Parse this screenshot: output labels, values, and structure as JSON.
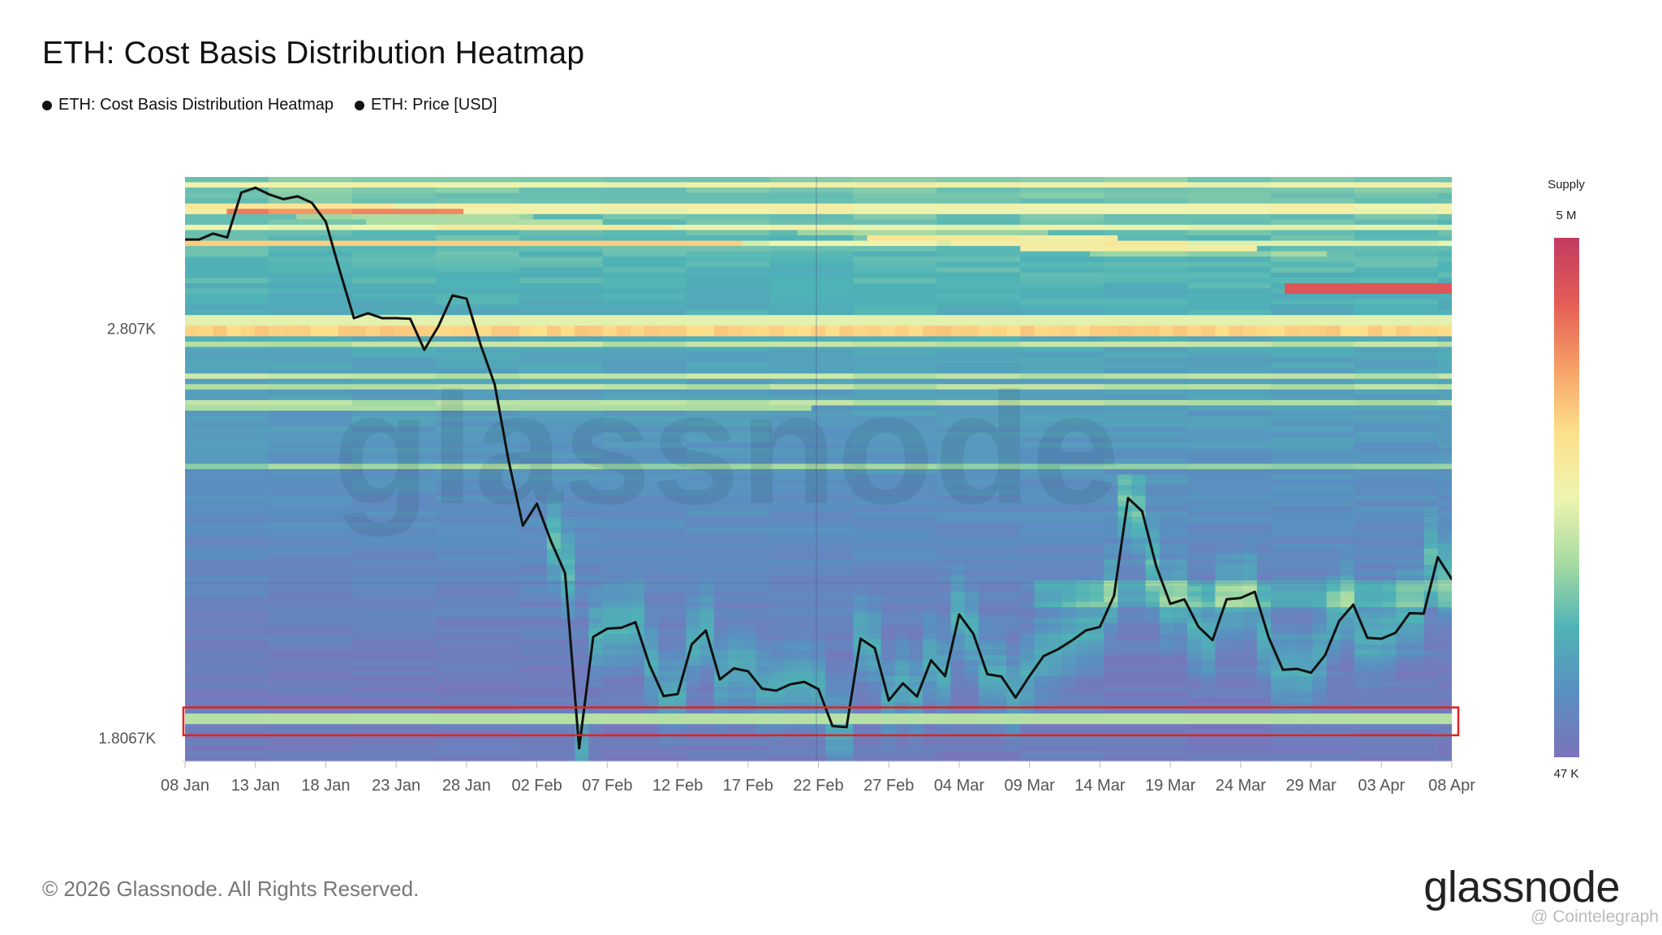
{
  "chart_data": {
    "type": "heatmap",
    "title": "ETH: Cost Basis Distribution Heatmap",
    "legend": [
      "ETH: Cost Basis Distribution Heatmap",
      "ETH: Price [USD]"
    ],
    "y_tick_labels": [
      "2.807K",
      "1.8067K"
    ],
    "ylim": [
      1760,
      3300
    ],
    "y_scale": "log",
    "x_tick_labels": [
      "08 Jan",
      "13 Jan",
      "18 Jan",
      "23 Jan",
      "28 Jan",
      "02 Feb",
      "07 Feb",
      "12 Feb",
      "17 Feb",
      "22 Feb",
      "27 Feb",
      "04 Mar",
      "09 Mar",
      "14 Mar",
      "19 Mar",
      "24 Mar",
      "29 Mar",
      "03 Apr",
      "08 Apr"
    ],
    "x_range": [
      "2026-01-08",
      "2026-04-08"
    ],
    "colorbar": {
      "title": "Supply",
      "max_label": "5 M",
      "min_label": "47 K",
      "colors": [
        "#7b73bb",
        "#5a8fc0",
        "#4fb3b6",
        "#a8dba2",
        "#eef4b0",
        "#fde08b",
        "#f6a067",
        "#e45c55",
        "#c23c62"
      ]
    },
    "heatmap_bands": [
      {
        "price": 2807,
        "supply": "high",
        "start": "2026-01-08",
        "end": "2026-04-08"
      },
      {
        "price": 1840,
        "supply": "medium",
        "start": "2026-01-08",
        "end": "2026-04-08"
      }
    ],
    "highlight_box": {
      "price_low": 1810,
      "price_high": 1865,
      "color": "#e0231b"
    },
    "price_series": {
      "name": "ETH: Price [USD]",
      "points": [
        [
          "2026-01-08",
          3085
        ],
        [
          "2026-01-09",
          3085
        ],
        [
          "2026-01-10",
          3105
        ],
        [
          "2026-01-11",
          3092
        ],
        [
          "2026-01-12",
          3245
        ],
        [
          "2026-01-13",
          3262
        ],
        [
          "2026-01-14",
          3238
        ],
        [
          "2026-01-15",
          3222
        ],
        [
          "2026-01-16",
          3232
        ],
        [
          "2026-01-17",
          3210
        ],
        [
          "2026-01-18",
          3145
        ],
        [
          "2026-01-19",
          2982
        ],
        [
          "2026-01-20",
          2835
        ],
        [
          "2026-01-21",
          2850
        ],
        [
          "2026-01-22",
          2835
        ],
        [
          "2026-01-23",
          2835
        ],
        [
          "2026-01-24",
          2833
        ],
        [
          "2026-01-25",
          2740
        ],
        [
          "2026-01-26",
          2810
        ],
        [
          "2026-01-27",
          2905
        ],
        [
          "2026-01-28",
          2895
        ],
        [
          "2026-01-29",
          2755
        ],
        [
          "2026-01-30",
          2640
        ],
        [
          "2026-01-31",
          2430
        ],
        [
          "2026-02-01",
          2268
        ],
        [
          "2026-02-02",
          2322
        ],
        [
          "2026-02-03",
          2230
        ],
        [
          "2026-02-04",
          2155
        ],
        [
          "2026-02-05",
          1785
        ],
        [
          "2026-02-06",
          2012
        ],
        [
          "2026-02-07",
          2030
        ],
        [
          "2026-02-08",
          2032
        ],
        [
          "2026-02-09",
          2044
        ],
        [
          "2026-02-10",
          1952
        ],
        [
          "2026-02-11",
          1888
        ],
        [
          "2026-02-12",
          1892
        ],
        [
          "2026-02-13",
          1996
        ],
        [
          "2026-02-14",
          2026
        ],
        [
          "2026-02-15",
          1922
        ],
        [
          "2026-02-16",
          1945
        ],
        [
          "2026-02-17",
          1939
        ],
        [
          "2026-02-18",
          1903
        ],
        [
          "2026-02-19",
          1899
        ],
        [
          "2026-02-20",
          1912
        ],
        [
          "2026-02-21",
          1917
        ],
        [
          "2026-02-22",
          1902
        ],
        [
          "2026-02-23",
          1828
        ],
        [
          "2026-02-24",
          1826
        ],
        [
          "2026-02-25",
          2008
        ],
        [
          "2026-02-26",
          1988
        ],
        [
          "2026-02-27",
          1879
        ],
        [
          "2026-02-28",
          1914
        ],
        [
          "2026-03-01",
          1887
        ],
        [
          "2026-03-02",
          1962
        ],
        [
          "2026-03-03",
          1929
        ],
        [
          "2026-03-04",
          2061
        ],
        [
          "2026-03-05",
          2019
        ],
        [
          "2026-03-06",
          1933
        ],
        [
          "2026-03-07",
          1928
        ],
        [
          "2026-03-08",
          1885
        ],
        [
          "2026-03-09",
          1929
        ],
        [
          "2026-03-10",
          1971
        ],
        [
          "2026-03-11",
          1985
        ],
        [
          "2026-03-12",
          2004
        ],
        [
          "2026-03-13",
          2026
        ],
        [
          "2026-03-14",
          2034
        ],
        [
          "2026-03-15",
          2103
        ],
        [
          "2026-03-16",
          2336
        ],
        [
          "2026-03-17",
          2303
        ],
        [
          "2026-03-18",
          2171
        ],
        [
          "2026-03-19",
          2085
        ],
        [
          "2026-03-20",
          2095
        ],
        [
          "2026-03-21",
          2034
        ],
        [
          "2026-03-22",
          2005
        ],
        [
          "2026-03-23",
          2095
        ],
        [
          "2026-03-24",
          2098
        ],
        [
          "2026-03-25",
          2112
        ],
        [
          "2026-03-26",
          2010
        ],
        [
          "2026-03-27",
          1942
        ],
        [
          "2026-03-28",
          1944
        ],
        [
          "2026-03-29",
          1936
        ],
        [
          "2026-03-30",
          1973
        ],
        [
          "2026-03-31",
          2047
        ],
        [
          "2026-04-01",
          2083
        ],
        [
          "2026-04-02",
          2010
        ],
        [
          "2026-04-03",
          2008
        ],
        [
          "2026-04-04",
          2021
        ],
        [
          "2026-04-05",
          2064
        ],
        [
          "2026-04-06",
          2063
        ],
        [
          "2026-04-07",
          2192
        ],
        [
          "2026-04-08",
          2141
        ]
      ]
    }
  },
  "footer": {
    "copyright": "© 2026 Glassnode. All Rights Reserved.",
    "brand": "glassnode",
    "watermark": "glassnode",
    "credit": "@ Cointelegraph"
  }
}
